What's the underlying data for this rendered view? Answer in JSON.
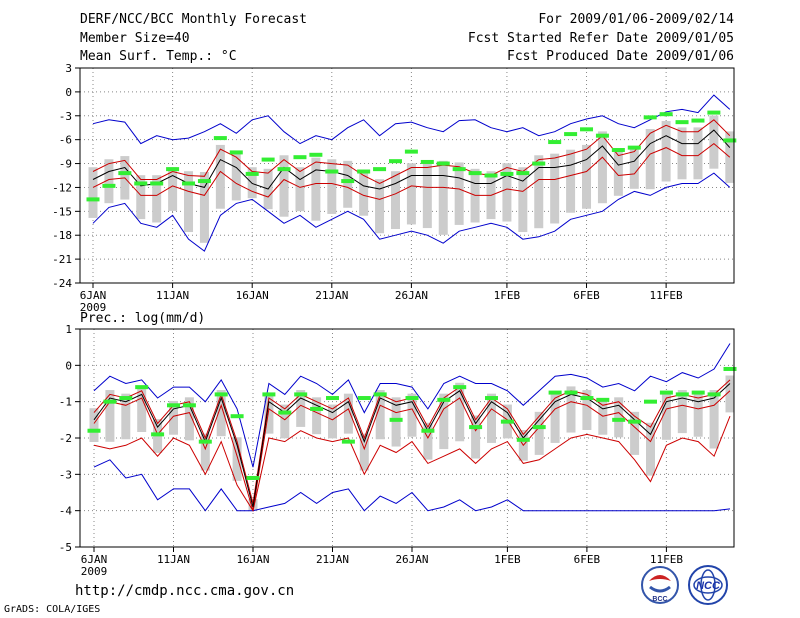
{
  "header": {
    "left": [
      "DERF/NCC/BCC Monthly Forecast",
      "Member Size=40",
      "Mean Surf. Temp.: °C"
    ],
    "right": [
      "For 2009/01/06-2009/02/14",
      "Fcst Started Refer Date 2009/01/05",
      "Fcst Produced Date 2009/01/06"
    ]
  },
  "footer": {
    "url": "http://cmdp.ncc.cma.gov.cn",
    "grads": "GrADS: COLA/IGES"
  },
  "logos": {
    "bcc": "BCC",
    "ncc": "NCC"
  },
  "colors": {
    "envelope": "#0000cc",
    "spread": "#cc0000",
    "mean": "#000000",
    "box": "#cccccc",
    "obs": "#33ee33",
    "grid": "#888888"
  },
  "chart_data": [
    {
      "type": "line",
      "title": "Mean Surf. Temp.: °C",
      "ylim": [
        -24,
        3
      ],
      "yticks": [
        3,
        0,
        -3,
        -6,
        -9,
        -12,
        -15,
        -18,
        -21,
        -24
      ],
      "xticks": [
        {
          "day": 0,
          "label": "6JAN",
          "sub": "2009"
        },
        {
          "day": 5,
          "label": "11JAN"
        },
        {
          "day": 10,
          "label": "16JAN"
        },
        {
          "day": 15,
          "label": "21JAN"
        },
        {
          "day": 20,
          "label": "26JAN"
        },
        {
          "day": 26,
          "label": "1FEB"
        },
        {
          "day": 31,
          "label": "6FEB"
        },
        {
          "day": 36,
          "label": "11FEB"
        }
      ],
      "series": [
        {
          "name": "max",
          "values": [
            -4,
            -3.5,
            -3.8,
            -6.5,
            -5.5,
            -6,
            -5.8,
            -5,
            -4,
            -5.2,
            -3.5,
            -3,
            -5,
            -6.5,
            -5.5,
            -6,
            -4.5,
            -3.5,
            -5.5,
            -4,
            -3.8,
            -4.5,
            -5,
            -3.6,
            -3.5,
            -4.5,
            -5,
            -4.5,
            -5.5,
            -5,
            -4,
            -3.4,
            -3,
            -4,
            -4.5,
            -3.5,
            -2.5,
            -2.2,
            -2.6,
            -0.4,
            -2.2
          ]
        },
        {
          "name": "upper",
          "values": [
            -10,
            -9,
            -8.6,
            -11,
            -11,
            -10,
            -10.5,
            -10.6,
            -7.2,
            -8.2,
            -10,
            -10.2,
            -8.5,
            -10,
            -8.8,
            -9,
            -9.2,
            -10.5,
            -11.5,
            -10.5,
            -9.5,
            -9.5,
            -9.2,
            -9.4,
            -10.2,
            -10.5,
            -9.5,
            -10,
            -8.5,
            -8.3,
            -7.8,
            -7.2,
            -5.5,
            -8,
            -7.5,
            -5.2,
            -4.2,
            -5,
            -5,
            -3.5,
            -5.5
          ]
        },
        {
          "name": "mean",
          "values": [
            -11,
            -10,
            -9.5,
            -11.8,
            -11.5,
            -10.5,
            -11.5,
            -12,
            -8.5,
            -9.5,
            -11.5,
            -12.2,
            -9.5,
            -11,
            -9.8,
            -10,
            -10.5,
            -11.8,
            -12.2,
            -11.5,
            -10.5,
            -10.5,
            -10.5,
            -10.8,
            -11.5,
            -11.5,
            -10.5,
            -11.2,
            -9.5,
            -9.5,
            -9.2,
            -8.5,
            -6.8,
            -9.2,
            -8.7,
            -6.5,
            -5.5,
            -6.5,
            -6.5,
            -4.8,
            -7
          ]
        },
        {
          "name": "lower",
          "values": [
            -12,
            -11,
            -10.8,
            -13,
            -13,
            -11.8,
            -12.5,
            -13,
            -10,
            -11.5,
            -12.5,
            -13.2,
            -11,
            -12,
            -11.5,
            -11.5,
            -12,
            -13,
            -13.5,
            -12.8,
            -11.8,
            -12,
            -12,
            -12.2,
            -13,
            -13,
            -12.2,
            -12.5,
            -11,
            -11,
            -10.5,
            -10,
            -8.2,
            -10.5,
            -10.3,
            -7.8,
            -7,
            -8,
            -8,
            -6.5,
            -8.2
          ]
        },
        {
          "name": "min",
          "values": [
            -16.5,
            -14.5,
            -14,
            -16.5,
            -17,
            -15.5,
            -18.5,
            -20,
            -15.5,
            -14,
            -13.5,
            -15,
            -16.5,
            -15.5,
            -17,
            -16,
            -15,
            -16,
            -18.5,
            -18,
            -17.5,
            -18,
            -19,
            -17.5,
            -17,
            -16.5,
            -17,
            -18.5,
            -18.2,
            -17.5,
            -16,
            -15.5,
            -15,
            -13.5,
            -12.5,
            -13,
            -12,
            -11.5,
            -11.5,
            -10.2,
            -12
          ]
        },
        {
          "name": "observed",
          "values": [
            -13.5,
            -11.8,
            -10.2,
            -11.5,
            -11.5,
            -9.7,
            -11.5,
            -11.2,
            -5.8,
            -7.6,
            -10.3,
            -8.5,
            -9.7,
            -8.2,
            -7.9,
            -10,
            -11.2,
            -10,
            -9.7,
            -8.7,
            -7.5,
            -8.8,
            -9,
            -9.7,
            -10.2,
            -10.5,
            -10.3,
            -10.2,
            -9,
            -6.3,
            -5.3,
            -4.7,
            -5.5,
            -7.3,
            -7,
            -3.2,
            -2.8,
            -3.8,
            -3.6,
            -2.6,
            -6.1
          ]
        }
      ]
    },
    {
      "type": "line",
      "title": "Prec.: log(mm/d)",
      "ylim": [
        -5,
        1
      ],
      "yticks": [
        1,
        0,
        -1,
        -2,
        -3,
        -4,
        -5
      ],
      "xticks": [
        {
          "day": 0,
          "label": "6JAN",
          "sub": "2009"
        },
        {
          "day": 5,
          "label": "11JAN"
        },
        {
          "day": 10,
          "label": "16JAN"
        },
        {
          "day": 15,
          "label": "21JAN"
        },
        {
          "day": 20,
          "label": "26JAN"
        },
        {
          "day": 26,
          "label": "1FEB"
        },
        {
          "day": 31,
          "label": "6FEB"
        },
        {
          "day": 36,
          "label": "11FEB"
        }
      ],
      "series": [
        {
          "name": "max",
          "values": [
            -0.7,
            -0.3,
            -0.5,
            -0.4,
            -0.9,
            -0.6,
            -0.6,
            -1,
            -0.4,
            -1.2,
            -2.8,
            -0.5,
            -0.8,
            -0.3,
            -0.5,
            -0.8,
            -0.4,
            -1.3,
            -0.5,
            -0.5,
            -0.6,
            -1.2,
            -0.5,
            -0.3,
            -0.5,
            -0.5,
            -0.7,
            -1.1,
            -0.7,
            -0.3,
            -0.25,
            -0.35,
            -0.6,
            -0.5,
            -0.7,
            -0.3,
            -0.45,
            -0.2,
            -0.35,
            -0.1,
            0.6
          ]
        },
        {
          "name": "upper",
          "values": [
            -1.3,
            -0.8,
            -0.9,
            -0.7,
            -1.6,
            -1.1,
            -1.0,
            -2.0,
            -0.8,
            -2.1,
            -3.8,
            -0.9,
            -1.2,
            -0.8,
            -1.0,
            -1.2,
            -0.9,
            -2.0,
            -0.8,
            -1.0,
            -0.9,
            -1.7,
            -0.9,
            -0.6,
            -1.5,
            -0.9,
            -1.2,
            -1.9,
            -1.4,
            -0.9,
            -0.7,
            -0.8,
            -1.1,
            -1.0,
            -1.4,
            -1.7,
            -0.9,
            -0.8,
            -0.9,
            -0.8,
            -0.4
          ]
        },
        {
          "name": "mean",
          "values": [
            -1.5,
            -0.9,
            -1.0,
            -0.8,
            -1.7,
            -1.2,
            -1.1,
            -2.1,
            -0.9,
            -2.2,
            -3.9,
            -1.0,
            -1.3,
            -0.9,
            -1.1,
            -1.3,
            -1.0,
            -2.1,
            -0.9,
            -1.1,
            -1.0,
            -1.8,
            -1.0,
            -0.7,
            -1.6,
            -1.0,
            -1.3,
            -2.0,
            -1.5,
            -1.0,
            -0.8,
            -0.9,
            -1.2,
            -1.1,
            -1.5,
            -1.9,
            -1.0,
            -0.9,
            -1.0,
            -0.9,
            -0.5
          ]
        },
        {
          "name": "lower",
          "values": [
            -1.6,
            -1.0,
            -1.1,
            -0.9,
            -1.9,
            -1.4,
            -1.3,
            -2.3,
            -1.1,
            -2.5,
            -4.0,
            -1.2,
            -1.5,
            -1.1,
            -1.3,
            -1.5,
            -1.2,
            -2.3,
            -1.1,
            -1.3,
            -1.2,
            -2.0,
            -1.2,
            -0.9,
            -1.8,
            -1.2,
            -1.5,
            -2.2,
            -1.7,
            -1.2,
            -1.0,
            -1.1,
            -1.4,
            -1.3,
            -1.7,
            -2.1,
            -1.2,
            -1.1,
            -1.2,
            -1.1,
            -0.7
          ]
        },
        {
          "name": "min",
          "values": [
            -2.2,
            -2.3,
            -2.2,
            -2.0,
            -2.5,
            -2.0,
            -2.2,
            -3.0,
            -2.1,
            -3.3,
            -4.0,
            -2.0,
            -2.1,
            -1.8,
            -2.0,
            -2.1,
            -2.0,
            -3.0,
            -2.2,
            -2.4,
            -2.1,
            -2.7,
            -2.5,
            -2.3,
            -2.7,
            -2.3,
            -2.1,
            -2.7,
            -2.6,
            -2.3,
            -2.0,
            -1.9,
            -2.0,
            -2.1,
            -2.6,
            -3.2,
            -2.2,
            -2.0,
            -2.1,
            -2.5,
            -1.4
          ]
        },
        {
          "name": "min_envelope",
          "values": [
            -2.8,
            -2.6,
            -3.1,
            -3.0,
            -3.7,
            -3.4,
            -3.4,
            -4.0,
            -3.4,
            -4.0,
            -4.0,
            -3.9,
            -3.8,
            -3.5,
            -3.8,
            -3.5,
            -3.4,
            -4.0,
            -3.6,
            -3.8,
            -3.5,
            -4.0,
            -3.9,
            -3.7,
            -4.0,
            -3.9,
            -3.7,
            -4.0,
            -4.0,
            -4.0,
            -4.0,
            -4.0,
            -4.0,
            -4.0,
            -4.0,
            -4.0,
            -4.0,
            -4.0,
            -4.0,
            -4.0,
            -3.95
          ]
        },
        {
          "name": "observed",
          "values": [
            -1.8,
            -1.0,
            -0.9,
            -0.6,
            -1.9,
            -1.1,
            -1.1,
            -2.1,
            -0.8,
            -1.4,
            -3.1,
            -0.8,
            -1.3,
            -0.8,
            -1.2,
            -0.9,
            -2.1,
            -0.9,
            -0.8,
            -1.5,
            -0.9,
            -1.8,
            -0.95,
            -0.6,
            -1.7,
            -0.9,
            -1.55,
            -2.05,
            -1.7,
            -0.75,
            -0.75,
            -0.9,
            -0.95,
            -1.5,
            -1.55,
            -1.0,
            -0.75,
            -0.8,
            -0.75,
            -0.8,
            -0.1
          ]
        }
      ]
    }
  ]
}
